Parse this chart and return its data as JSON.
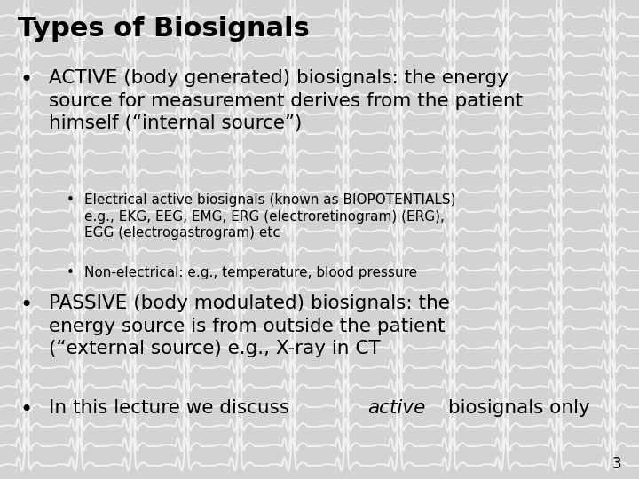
{
  "title": "Types of Biosignals",
  "background_color": "#d3d3d3",
  "title_color": "#000000",
  "title_fontsize": 22,
  "title_bold": true,
  "body_fontsize": 15.5,
  "sub_fontsize": 11,
  "page_number": "3",
  "bullet1": "ACTIVE (body generated) biosignals: the energy\nsource for measurement derives from the patient\nhimself (“internal source”)",
  "sub_bullet1": "Electrical active biosignals (known as BIOPOTENTIALS)\ne.g., EKG, EEG, EMG, ERG (electroretinogram) (ERG),\nEGG (electrogastrogram) etc",
  "sub_bullet2": "Non-electrical: e.g., temperature, blood pressure",
  "bullet2": "PASSIVE (body modulated) biosignals: the\nenergy source is from outside the patient\n(“external source) e.g., X-ray in CT",
  "bullet3_normal": "In this lecture we discuss ",
  "bullet3_italic": "active",
  "bullet3_end": " biosignals only",
  "wave_color": "#ffffff",
  "text_color": "#000000",
  "wave_alpha": 0.7,
  "wave_lw": 1.5
}
